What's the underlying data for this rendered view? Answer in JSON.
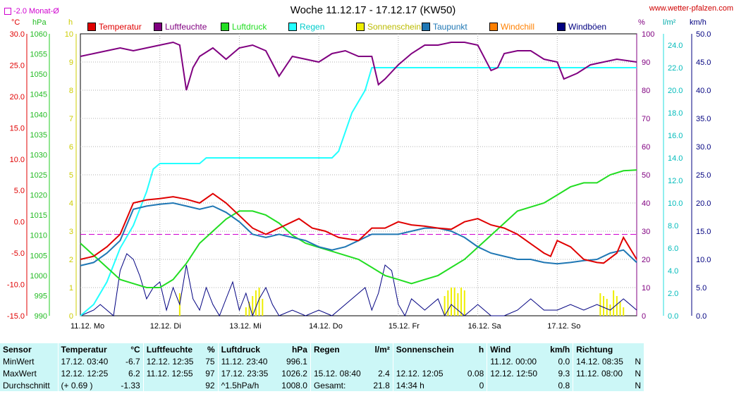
{
  "title": "Woche 11.12.17 - 17.12.17 (KW50)",
  "site": "www.wetter-pfalzen.com",
  "monat_label": "-2.0 Monat-Ø",
  "units": {
    "c": "°C",
    "hpa": "hPa",
    "h": "h",
    "pct": "%",
    "lm2": "l/m²",
    "kmh": "km/h"
  },
  "legend": [
    {
      "label": "Temperatur",
      "color": "#e00000"
    },
    {
      "label": "Luftfeuchte",
      "color": "#800080"
    },
    {
      "label": "Luftdruck",
      "color": "#22dd22"
    },
    {
      "label": "Regen",
      "color": "#22ffff"
    },
    {
      "label": "Sonnenschein",
      "color": "#eeee00"
    },
    {
      "label": "Taupunkt",
      "color": "#1f77b4"
    },
    {
      "label": "Windchill",
      "color": "#ff8000"
    },
    {
      "label": "Windböen",
      "color": "#000080"
    }
  ],
  "axes": {
    "temp": [
      "30.0",
      "25.0",
      "20.0",
      "15.0",
      "10.0",
      "5.0",
      "0.0",
      "-5.0",
      "-10.0",
      "-15.0"
    ],
    "press": [
      "1060",
      "1055",
      "1050",
      "1045",
      "1040",
      "1035",
      "1030",
      "1025",
      "1020",
      "1015",
      "1010",
      "1005",
      "1000",
      "995",
      "990"
    ],
    "sun": [
      "10",
      "9",
      "8",
      "7",
      "6",
      "5",
      "4",
      "3",
      "2",
      "1",
      "0"
    ],
    "hum": [
      "100",
      "90",
      "80",
      "70",
      "60",
      "50",
      "40",
      "30",
      "20",
      "10",
      "0"
    ],
    "rain": [
      "24.0",
      "22.0",
      "20.0",
      "18.0",
      "16.0",
      "14.0",
      "12.0",
      "10.0",
      "8.0",
      "6.0",
      "4.0",
      "2.0",
      "0.0"
    ],
    "wind": [
      "50.0",
      "45.0",
      "40.0",
      "35.0",
      "30.0",
      "25.0",
      "20.0",
      "15.0",
      "10.0",
      "5.0",
      "0.0"
    ],
    "days": [
      "11.12. Mo",
      "12.12. Di",
      "13.12. Mi",
      "14.12. Do",
      "15.12. Fr",
      "16.12. Sa",
      "17.12. So"
    ]
  },
  "chart_data": {
    "type": "line",
    "title": "Woche 11.12.17 - 17.12.17 (KW50)",
    "x_unit": "hours since 11.12. 00:00",
    "xlim": [
      0,
      168
    ],
    "monat_avg_temp": -2.0,
    "series": [
      {
        "name": "Temperatur",
        "axis": "°C",
        "color": "#e00000",
        "points": [
          [
            0,
            -6
          ],
          [
            4,
            -5.5
          ],
          [
            8,
            -4
          ],
          [
            12,
            -2
          ],
          [
            16,
            3
          ],
          [
            20,
            3.5
          ],
          [
            24,
            3.7
          ],
          [
            28,
            4
          ],
          [
            32,
            3.6
          ],
          [
            36,
            3
          ],
          [
            40,
            4.5
          ],
          [
            44,
            3
          ],
          [
            48,
            1
          ],
          [
            52,
            -1
          ],
          [
            56,
            -2
          ],
          [
            60,
            -1
          ],
          [
            64,
            0
          ],
          [
            66,
            0.5
          ],
          [
            70,
            -1
          ],
          [
            74,
            -1.5
          ],
          [
            78,
            -2.5
          ],
          [
            84,
            -3
          ],
          [
            88,
            -1
          ],
          [
            92,
            -1
          ],
          [
            96,
            0
          ],
          [
            100,
            -0.5
          ],
          [
            104,
            -0.7
          ],
          [
            108,
            -1
          ],
          [
            112,
            -1.2
          ],
          [
            116,
            0
          ],
          [
            120,
            0.5
          ],
          [
            124,
            -0.5
          ],
          [
            128,
            -1
          ],
          [
            132,
            -2
          ],
          [
            136,
            -3.5
          ],
          [
            140,
            -5
          ],
          [
            142,
            -5.5
          ],
          [
            144,
            -3
          ],
          [
            148,
            -4
          ],
          [
            152,
            -6
          ],
          [
            156,
            -6.5
          ],
          [
            158,
            -6.6
          ],
          [
            162,
            -5
          ],
          [
            164,
            -2.5
          ],
          [
            168,
            -6
          ]
        ]
      },
      {
        "name": "Luftfeuchte",
        "axis": "%",
        "color": "#800080",
        "points": [
          [
            0,
            92
          ],
          [
            4,
            93
          ],
          [
            8,
            94
          ],
          [
            12,
            95
          ],
          [
            16,
            94
          ],
          [
            20,
            95
          ],
          [
            24,
            96
          ],
          [
            28,
            97
          ],
          [
            30,
            96
          ],
          [
            32,
            80
          ],
          [
            34,
            88
          ],
          [
            36,
            92
          ],
          [
            40,
            95
          ],
          [
            44,
            91
          ],
          [
            48,
            95
          ],
          [
            52,
            96
          ],
          [
            56,
            94
          ],
          [
            60,
            85
          ],
          [
            64,
            92
          ],
          [
            68,
            91
          ],
          [
            72,
            90
          ],
          [
            76,
            93
          ],
          [
            80,
            94
          ],
          [
            84,
            92
          ],
          [
            88,
            92
          ],
          [
            90,
            82
          ],
          [
            92,
            84
          ],
          [
            96,
            89
          ],
          [
            100,
            93
          ],
          [
            104,
            96
          ],
          [
            108,
            96
          ],
          [
            112,
            97
          ],
          [
            116,
            97
          ],
          [
            120,
            96
          ],
          [
            124,
            87
          ],
          [
            126,
            88
          ],
          [
            128,
            93
          ],
          [
            132,
            94
          ],
          [
            136,
            94
          ],
          [
            140,
            91
          ],
          [
            144,
            90
          ],
          [
            146,
            84
          ],
          [
            150,
            86
          ],
          [
            154,
            89
          ],
          [
            158,
            90
          ],
          [
            162,
            91
          ],
          [
            168,
            90
          ]
        ]
      },
      {
        "name": "Luftdruck",
        "axis": "hPa",
        "color": "#22dd22",
        "points": [
          [
            0,
            1008
          ],
          [
            4,
            1005
          ],
          [
            8,
            1002
          ],
          [
            12,
            999
          ],
          [
            16,
            998
          ],
          [
            20,
            997
          ],
          [
            24,
            997
          ],
          [
            28,
            999
          ],
          [
            32,
            1003
          ],
          [
            36,
            1008
          ],
          [
            40,
            1011
          ],
          [
            44,
            1014
          ],
          [
            48,
            1016
          ],
          [
            52,
            1016
          ],
          [
            56,
            1015
          ],
          [
            60,
            1013
          ],
          [
            64,
            1010
          ],
          [
            68,
            1008
          ],
          [
            72,
            1007
          ],
          [
            76,
            1006
          ],
          [
            80,
            1005
          ],
          [
            84,
            1004
          ],
          [
            88,
            1002
          ],
          [
            92,
            1000
          ],
          [
            96,
            999
          ],
          [
            100,
            998
          ],
          [
            104,
            999
          ],
          [
            108,
            1000
          ],
          [
            112,
            1002
          ],
          [
            116,
            1004
          ],
          [
            120,
            1007
          ],
          [
            124,
            1010
          ],
          [
            128,
            1013
          ],
          [
            132,
            1016
          ],
          [
            136,
            1017
          ],
          [
            140,
            1018
          ],
          [
            144,
            1020
          ],
          [
            148,
            1022
          ],
          [
            152,
            1023
          ],
          [
            156,
            1023
          ],
          [
            160,
            1025
          ],
          [
            164,
            1026
          ],
          [
            168,
            1026.2
          ]
        ]
      },
      {
        "name": "Regen",
        "axis": "l/m²",
        "color": "#22ffff",
        "points": [
          [
            0,
            0
          ],
          [
            4,
            1
          ],
          [
            8,
            3
          ],
          [
            12,
            6
          ],
          [
            16,
            8
          ],
          [
            20,
            11
          ],
          [
            22,
            13
          ],
          [
            24,
            13.5
          ],
          [
            36,
            13.5
          ],
          [
            38,
            14
          ],
          [
            76,
            14
          ],
          [
            78,
            14.6
          ],
          [
            82,
            18
          ],
          [
            86,
            20
          ],
          [
            88,
            22
          ],
          [
            168,
            22
          ]
        ]
      },
      {
        "name": "Taupunkt",
        "axis": "°C",
        "color": "#1f77b4",
        "points": [
          [
            0,
            -7
          ],
          [
            4,
            -6.5
          ],
          [
            8,
            -5
          ],
          [
            12,
            -3
          ],
          [
            16,
            2
          ],
          [
            20,
            2.5
          ],
          [
            24,
            2.8
          ],
          [
            28,
            3
          ],
          [
            32,
            2.5
          ],
          [
            36,
            2
          ],
          [
            40,
            2.5
          ],
          [
            44,
            1.5
          ],
          [
            48,
            0
          ],
          [
            52,
            -2
          ],
          [
            56,
            -2.5
          ],
          [
            60,
            -2
          ],
          [
            64,
            -2.5
          ],
          [
            68,
            -3
          ],
          [
            72,
            -4
          ],
          [
            76,
            -4.5
          ],
          [
            80,
            -4
          ],
          [
            84,
            -3
          ],
          [
            88,
            -2
          ],
          [
            92,
            -2
          ],
          [
            96,
            -2
          ],
          [
            100,
            -1.5
          ],
          [
            104,
            -1
          ],
          [
            108,
            -1
          ],
          [
            112,
            -1.5
          ],
          [
            116,
            -2.5
          ],
          [
            120,
            -4
          ],
          [
            124,
            -5
          ],
          [
            128,
            -5.5
          ],
          [
            132,
            -6
          ],
          [
            136,
            -6
          ],
          [
            140,
            -6.5
          ],
          [
            144,
            -6.7
          ],
          [
            148,
            -6.5
          ],
          [
            152,
            -6.2
          ],
          [
            156,
            -6
          ],
          [
            160,
            -5
          ],
          [
            164,
            -4.5
          ],
          [
            168,
            -6.5
          ]
        ]
      },
      {
        "name": "Windböen",
        "axis": "km/h",
        "color": "#000080",
        "points": [
          [
            0,
            0
          ],
          [
            4,
            1
          ],
          [
            6,
            2
          ],
          [
            8,
            1
          ],
          [
            10,
            0
          ],
          [
            12,
            8
          ],
          [
            14,
            11
          ],
          [
            16,
            10
          ],
          [
            18,
            7
          ],
          [
            20,
            3
          ],
          [
            22,
            5
          ],
          [
            24,
            6
          ],
          [
            26,
            1
          ],
          [
            28,
            5
          ],
          [
            30,
            2
          ],
          [
            32,
            9
          ],
          [
            34,
            3
          ],
          [
            36,
            1
          ],
          [
            38,
            5
          ],
          [
            40,
            2
          ],
          [
            42,
            0
          ],
          [
            44,
            3
          ],
          [
            46,
            6
          ],
          [
            48,
            1
          ],
          [
            50,
            4
          ],
          [
            52,
            0
          ],
          [
            54,
            3
          ],
          [
            56,
            5
          ],
          [
            58,
            2
          ],
          [
            60,
            0
          ],
          [
            64,
            1
          ],
          [
            68,
            0
          ],
          [
            72,
            1
          ],
          [
            76,
            0
          ],
          [
            80,
            2
          ],
          [
            84,
            4
          ],
          [
            86,
            5
          ],
          [
            88,
            1
          ],
          [
            90,
            4
          ],
          [
            92,
            9
          ],
          [
            94,
            8
          ],
          [
            96,
            2
          ],
          [
            98,
            0
          ],
          [
            100,
            3
          ],
          [
            104,
            1
          ],
          [
            108,
            3
          ],
          [
            110,
            0
          ],
          [
            112,
            2
          ],
          [
            116,
            0
          ],
          [
            120,
            2
          ],
          [
            124,
            0
          ],
          [
            128,
            0
          ],
          [
            132,
            1
          ],
          [
            136,
            3
          ],
          [
            140,
            1
          ],
          [
            144,
            1
          ],
          [
            148,
            2
          ],
          [
            152,
            1
          ],
          [
            156,
            2
          ],
          [
            160,
            1
          ],
          [
            164,
            3
          ],
          [
            168,
            1
          ]
        ]
      }
    ],
    "sun_bars": [
      [
        30,
        0.8
      ],
      [
        50,
        0.3
      ],
      [
        51,
        0.5
      ],
      [
        52,
        0.7
      ],
      [
        53,
        0.9
      ],
      [
        54,
        1.0
      ],
      [
        55,
        0.6
      ],
      [
        110,
        0.7
      ],
      [
        111,
        0.9
      ],
      [
        112,
        1.0
      ],
      [
        113,
        1.0
      ],
      [
        114,
        0.8
      ],
      [
        115,
        1.0
      ],
      [
        116,
        0.9
      ],
      [
        157,
        0.8
      ],
      [
        158,
        0.7
      ],
      [
        159,
        0.6
      ],
      [
        160,
        0.4
      ],
      [
        161,
        0.9
      ],
      [
        162,
        0.7
      ],
      [
        163,
        0.5
      ],
      [
        164,
        0.3
      ]
    ]
  },
  "stats": {
    "headers": [
      "Sensor",
      "Temperatur",
      "°C",
      "Luftfeuchte",
      "%",
      "Luftdruck",
      "hPa",
      "Regen",
      "l/m²",
      "Sonnenschein",
      "h",
      "Wind",
      "km/h",
      "Richtung",
      ""
    ],
    "rows": [
      [
        "MinWert",
        "17.12.  03:40",
        "-6.7",
        "12.12.  12:35",
        "75",
        "11.12.  23:40",
        "996.1",
        "",
        "",
        "",
        "",
        "11.12.  00:00",
        "0.0",
        "14.12.  08:35",
        "N"
      ],
      [
        "MaxWert",
        "12.12.  12:25",
        "6.2",
        "11.12.  12:55",
        "97",
        "17.12.  23:35",
        "1026.2",
        "15.12.  08:40",
        "2.4",
        "12.12.  12:05",
        "0.08",
        "12.12.  12:50",
        "9.3",
        "11.12.  08:00",
        "N"
      ],
      [
        "Durchschnitt",
        "(+ 0.69 )",
        "-1.33",
        "",
        "92",
        "^1.5hPa/h",
        "1008.0",
        "Gesamt:",
        "21.8",
        "14:34 h",
        "0",
        "",
        "0.8",
        "",
        "N"
      ]
    ]
  }
}
